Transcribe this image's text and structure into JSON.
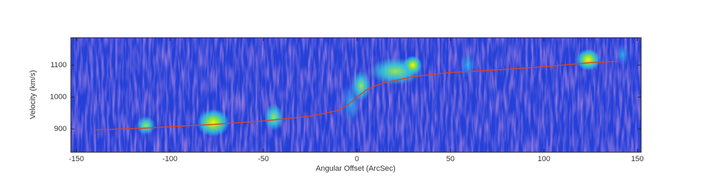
{
  "chart_data": {
    "type": "line",
    "xlabel": "Angular Offset (ArcSec)",
    "ylabel": "Velocity (km/s)",
    "x": [
      -140,
      -130,
      -115,
      -100,
      -75,
      -50,
      -25,
      -10,
      -5,
      0,
      5,
      10,
      15,
      30,
      50,
      75,
      100,
      125,
      140
    ],
    "series": [
      {
        "color": "#d9461e",
        "values": [
          897,
          899,
          902,
          907,
          915,
          925,
          940,
          958,
          975,
          1000,
          1022,
          1036,
          1045,
          1064,
          1077,
          1085,
          1095,
          1108,
          1112
        ]
      }
    ],
    "xlim": [
      -153,
      152
    ],
    "ylim": [
      827,
      1186
    ],
    "xticks": [
      -150,
      -100,
      -50,
      0,
      50,
      100,
      150
    ],
    "yticks": [
      900,
      1000,
      1100
    ]
  }
}
